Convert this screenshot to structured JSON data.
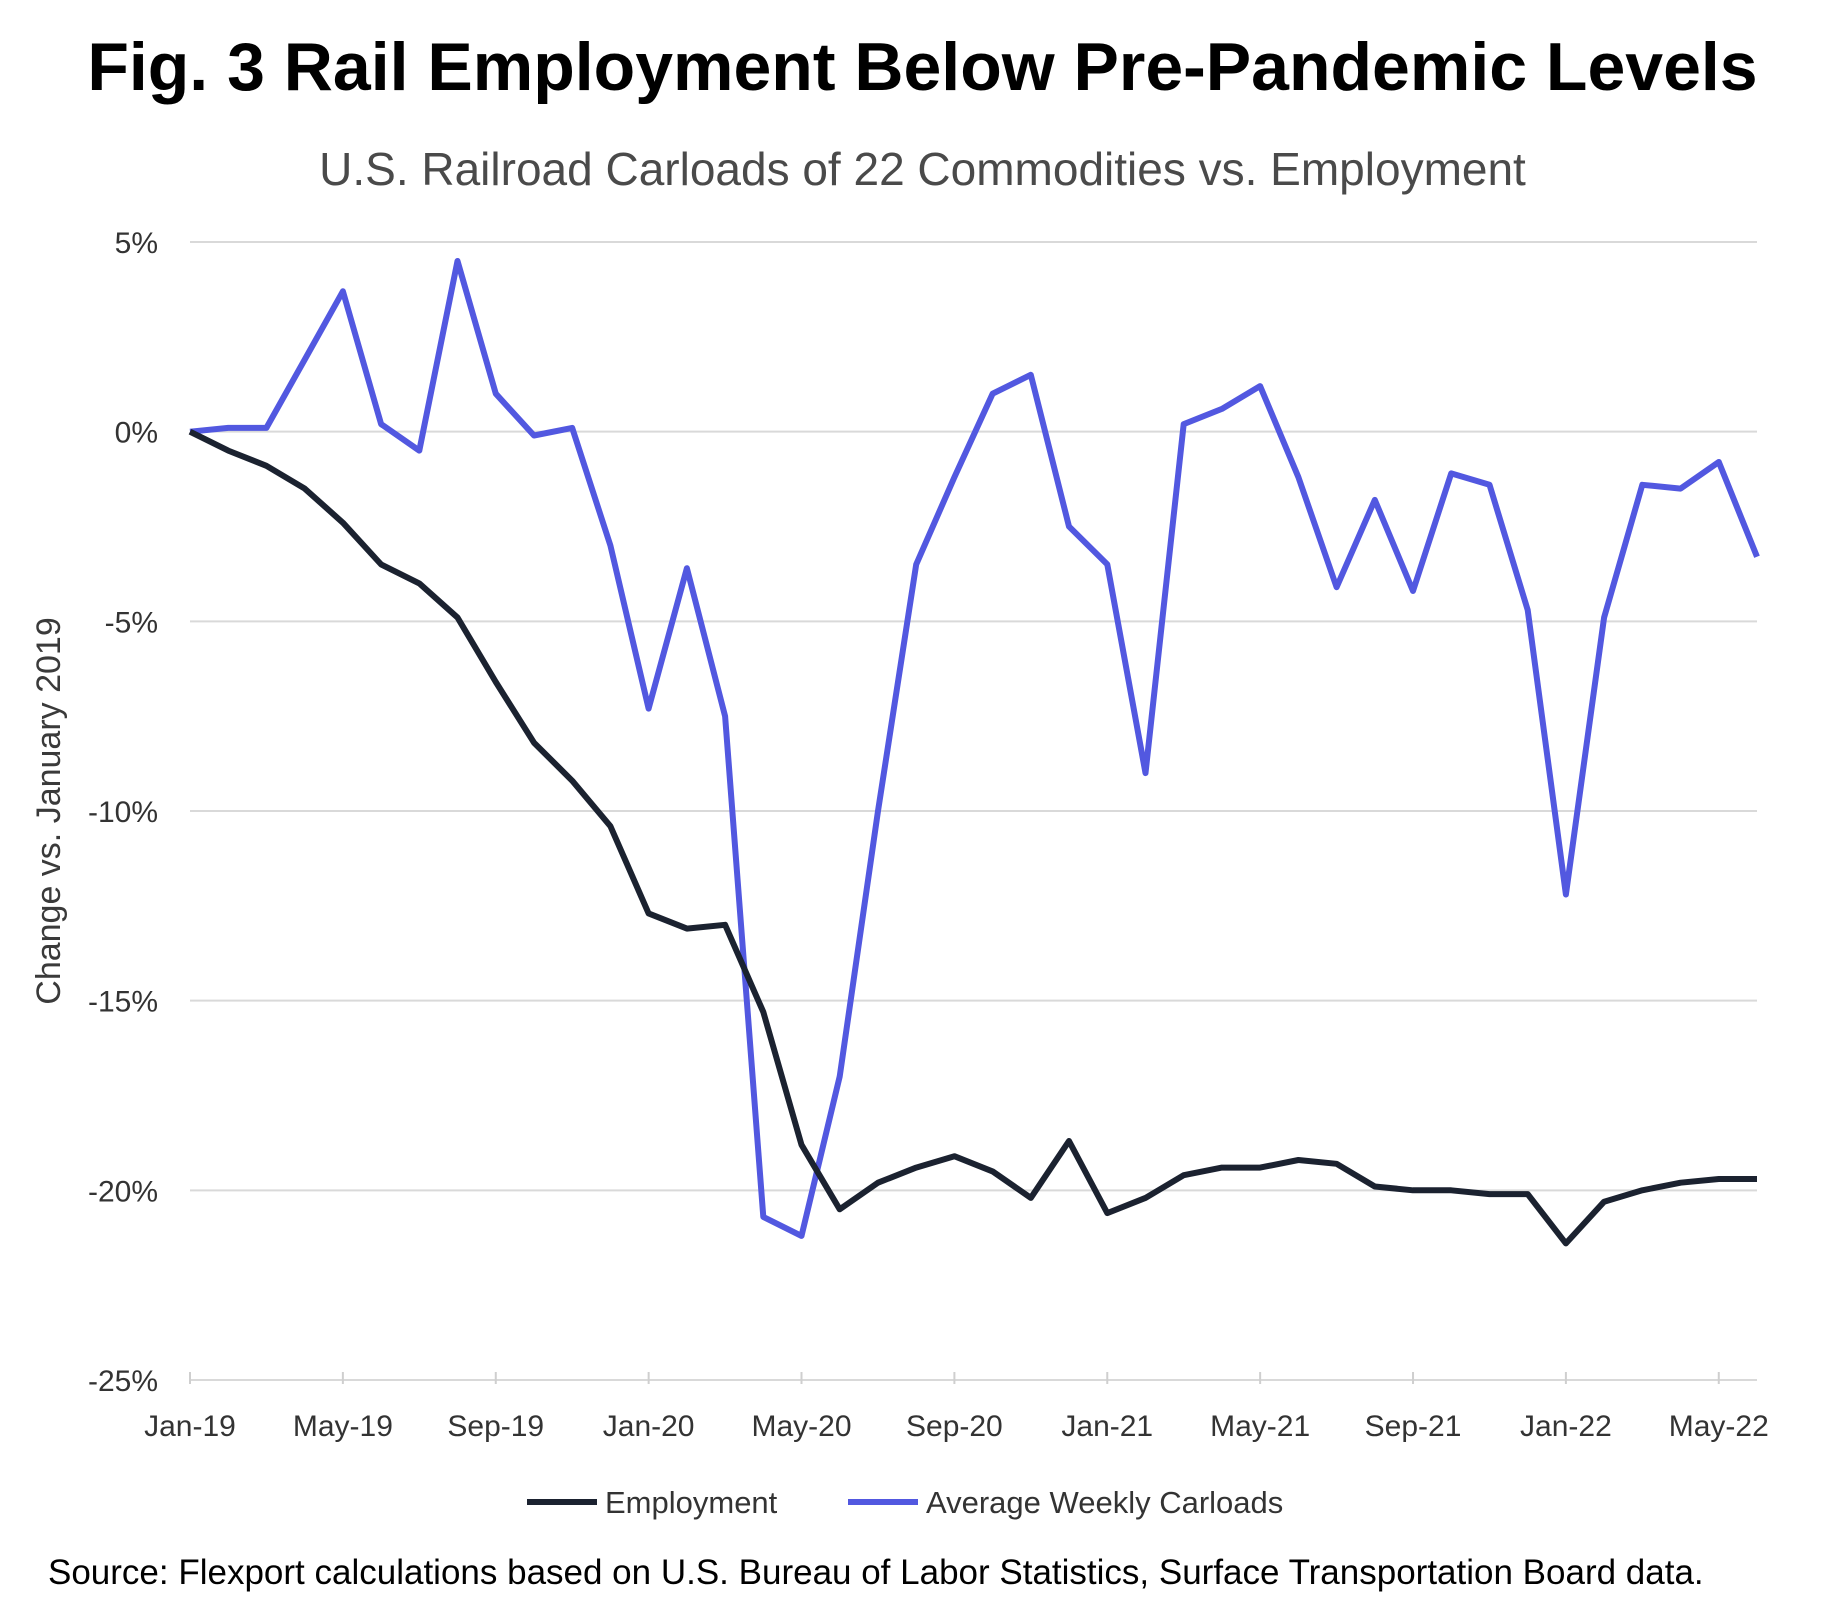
{
  "chart_data": {
    "type": "line",
    "title": "Fig. 3 Rail Employment Below Pre-Pandemic Levels",
    "subtitle": "U.S. Railroad Carloads of 22 Commodities vs. Employment",
    "ylabel": "Change vs. January 2019",
    "xlabel": "",
    "ylim": [
      -25,
      5
    ],
    "yticks": [
      5,
      0,
      -5,
      -10,
      -15,
      -20,
      -25
    ],
    "ytick_labels": [
      "5%",
      "0%",
      "-5%",
      "-10%",
      "-15%",
      "-20%",
      "-25%"
    ],
    "x": [
      "Jan-19",
      "Feb-19",
      "Mar-19",
      "Apr-19",
      "May-19",
      "Jun-19",
      "Jul-19",
      "Aug-19",
      "Sep-19",
      "Oct-19",
      "Nov-19",
      "Dec-19",
      "Jan-20",
      "Feb-20",
      "Mar-20",
      "Apr-20",
      "May-20",
      "Jun-20",
      "Jul-20",
      "Aug-20",
      "Sep-20",
      "Oct-20",
      "Nov-20",
      "Dec-20",
      "Jan-21",
      "Feb-21",
      "Mar-21",
      "Apr-21",
      "May-21",
      "Jun-21",
      "Jul-21",
      "Aug-21",
      "Sep-21",
      "Oct-21",
      "Nov-21",
      "Dec-21",
      "Jan-22",
      "Feb-22",
      "Mar-22",
      "Apr-22",
      "May-22",
      "Jun-22"
    ],
    "xtick_labels": [
      "Jan-19",
      "May-19",
      "Sep-19",
      "Jan-20",
      "May-20",
      "Sep-20",
      "Jan-21",
      "May-21",
      "Sep-21",
      "Jan-22",
      "May-22"
    ],
    "xtick_index": [
      0,
      4,
      8,
      12,
      16,
      20,
      24,
      28,
      32,
      36,
      40
    ],
    "grid": true,
    "legend_position": "bottom-center",
    "series": [
      {
        "name": "Employment",
        "color": "#1b2230",
        "values": [
          0,
          -0.5,
          -0.9,
          -1.5,
          -2.4,
          -3.5,
          -4,
          -4.9,
          -6.6,
          -8.2,
          -9.2,
          -10.4,
          -12.7,
          -13.1,
          -13,
          -15.3,
          -18.8,
          -20.5,
          -19.8,
          -19.4,
          -19.1,
          -19.5,
          -20.2,
          -18.7,
          -20.6,
          -20.2,
          -19.6,
          -19.4,
          -19.4,
          -19.2,
          -19.3,
          -19.9,
          -20,
          -20,
          -20.1,
          -20.1,
          -21.4,
          -20.3,
          -20,
          -19.8,
          -19.7,
          -19.7
        ]
      },
      {
        "name": "Average Weekly Carloads",
        "color": "#5258e0",
        "values": [
          0,
          0.1,
          0.1,
          1.9,
          3.7,
          0.2,
          -0.5,
          4.5,
          1,
          -0.1,
          0.1,
          -3,
          -7.3,
          -3.6,
          -7.5,
          -20.7,
          -21.2,
          -17,
          -10,
          -3.5,
          -1.2,
          1,
          1.5,
          -2.5,
          -3.5,
          -9,
          0.2,
          0.6,
          1.2,
          -1.2,
          -4.1,
          -1.8,
          -4.2,
          -1.1,
          -1.4,
          -4.7,
          -12.2,
          -4.9,
          -1.4,
          -1.5,
          -0.8,
          -3.3
        ]
      }
    ]
  },
  "source": "Source: Flexport calculations based on U.S. Bureau of Labor Statistics, Surface Transportation Board data."
}
